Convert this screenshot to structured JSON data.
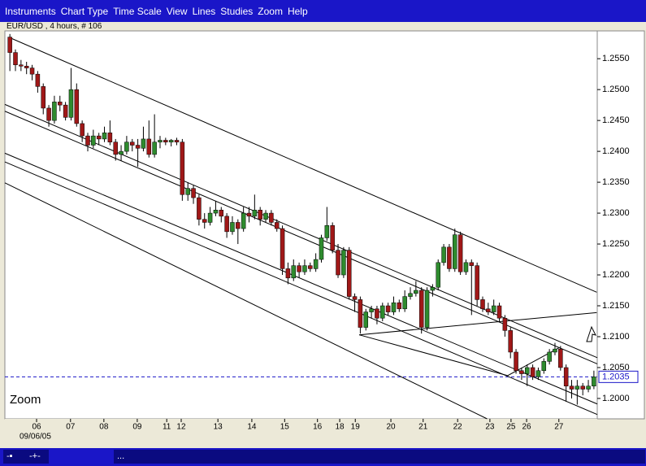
{
  "menu": [
    "Instruments",
    "Chart Type",
    "Time Scale",
    "View",
    "Lines",
    "Studies",
    "Zoom",
    "Help"
  ],
  "zoom_label": "Zoom",
  "status": "...",
  "chart_data": {
    "type": "candlestick",
    "title": "EUR/USD , 4 hours, # 106",
    "xlabel": "09/06/05",
    "up_color": "#2e8b2e",
    "down_color": "#a01818",
    "xlim": [
      -0.9,
      105.6
    ],
    "ylim": [
      1.1967,
      1.2595
    ],
    "xticks": [
      {
        "value": 4.8,
        "label": "06"
      },
      {
        "value": 10.9,
        "label": "07"
      },
      {
        "value": 16.9,
        "label": "08"
      },
      {
        "value": 22.9,
        "label": "09"
      },
      {
        "value": 28.2,
        "label": "11"
      },
      {
        "value": 30.8,
        "label": "12"
      },
      {
        "value": 37.4,
        "label": "13"
      },
      {
        "value": 43.5,
        "label": "14"
      },
      {
        "value": 49.4,
        "label": "15"
      },
      {
        "value": 55.3,
        "label": "16"
      },
      {
        "value": 59.3,
        "label": "18"
      },
      {
        "value": 62.1,
        "label": "19"
      },
      {
        "value": 68.5,
        "label": "20"
      },
      {
        "value": 74.3,
        "label": "21"
      },
      {
        "value": 80.5,
        "label": "22"
      },
      {
        "value": 86.3,
        "label": "23"
      },
      {
        "value": 90.1,
        "label": "25"
      },
      {
        "value": 92.9,
        "label": "26"
      },
      {
        "value": 98.7,
        "label": "27"
      }
    ],
    "yticks": [
      {
        "value": 1.2,
        "label": "1.2000"
      },
      {
        "value": 1.205,
        "label": "1.2050"
      },
      {
        "value": 1.21,
        "label": "1.2100"
      },
      {
        "value": 1.215,
        "label": "1.2150"
      },
      {
        "value": 1.22,
        "label": "1.2200"
      },
      {
        "value": 1.225,
        "label": "1.2250"
      },
      {
        "value": 1.23,
        "label": "1.2300"
      },
      {
        "value": 1.235,
        "label": "1.2350"
      },
      {
        "value": 1.24,
        "label": "1.2400"
      },
      {
        "value": 1.245,
        "label": "1.2450"
      },
      {
        "value": 1.25,
        "label": "1.2500"
      },
      {
        "value": 1.255,
        "label": "1.2550"
      }
    ],
    "current_price": {
      "value": 1.2035,
      "label": "1.2035",
      "color": "#1a16c8"
    },
    "trendlines": [
      {
        "x": [
          0,
          105.5
        ],
        "y": [
          1.2584,
          1.2172
        ]
      },
      {
        "x": [
          -0.9,
          105.6
        ],
        "y": [
          1.2476,
          1.2066
        ]
      },
      {
        "x": [
          -0.9,
          105.6
        ],
        "y": [
          1.2465,
          1.2056
        ]
      },
      {
        "x": [
          -0.9,
          105.6
        ],
        "y": [
          1.2397,
          1.1991
        ]
      },
      {
        "x": [
          -0.9,
          105.6
        ],
        "y": [
          1.2383,
          1.1974
        ]
      },
      {
        "x": [
          -0.9,
          85.8
        ],
        "y": [
          1.2349,
          1.1967
        ]
      },
      {
        "x": [
          62.8,
          105.5
        ],
        "y": [
          1.2103,
          1.2139
        ]
      },
      {
        "x": [
          62.8,
          89.5
        ],
        "y": [
          1.2103,
          1.2037
        ]
      },
      {
        "x": [
          89.5,
          98.7
        ],
        "y": [
          1.2037,
          1.2082
        ]
      }
    ],
    "candles": [
      [
        1.2585,
        1.259,
        1.253,
        1.256
      ],
      [
        1.256,
        1.2565,
        1.253,
        1.254
      ],
      [
        1.254,
        1.2548,
        1.253,
        1.2538
      ],
      [
        1.2538,
        1.2545,
        1.2525,
        1.2535
      ],
      [
        1.2535,
        1.254,
        1.2515,
        1.2525
      ],
      [
        1.2525,
        1.253,
        1.2495,
        1.2505
      ],
      [
        1.2505,
        1.251,
        1.246,
        1.247
      ],
      [
        1.247,
        1.2475,
        1.244,
        1.245
      ],
      [
        1.245,
        1.249,
        1.2445,
        1.248
      ],
      [
        1.248,
        1.249,
        1.2465,
        1.2475
      ],
      [
        1.2475,
        1.248,
        1.245,
        1.2455
      ],
      [
        1.2455,
        1.2535,
        1.245,
        1.25
      ],
      [
        1.25,
        1.251,
        1.244,
        1.2445
      ],
      [
        1.2445,
        1.245,
        1.2415,
        1.2425
      ],
      [
        1.2425,
        1.243,
        1.24,
        1.241
      ],
      [
        1.241,
        1.2435,
        1.2405,
        1.2425
      ],
      [
        1.2425,
        1.243,
        1.241,
        1.242
      ],
      [
        1.242,
        1.244,
        1.2415,
        1.243
      ],
      [
        1.243,
        1.245,
        1.241,
        1.2415
      ],
      [
        1.2415,
        1.242,
        1.2385,
        1.2395
      ],
      [
        1.2395,
        1.241,
        1.2385,
        1.24
      ],
      [
        1.24,
        1.2425,
        1.2395,
        1.2415
      ],
      [
        1.2415,
        1.242,
        1.24,
        1.241
      ],
      [
        1.241,
        1.242,
        1.2375,
        1.2405
      ],
      [
        1.2405,
        1.244,
        1.24,
        1.242
      ],
      [
        1.242,
        1.245,
        1.239,
        1.2395
      ],
      [
        1.2395,
        1.246,
        1.239,
        1.2415
      ],
      [
        1.2415,
        1.2425,
        1.2405,
        1.2418
      ],
      [
        1.2418,
        1.2422,
        1.241,
        1.2415
      ],
      [
        1.2415,
        1.242,
        1.2408,
        1.2418
      ],
      [
        1.2418,
        1.2422,
        1.241,
        1.2415
      ],
      [
        1.2415,
        1.242,
        1.232,
        1.233
      ],
      [
        1.233,
        1.235,
        1.232,
        1.234
      ],
      [
        1.234,
        1.2345,
        1.2315,
        1.2325
      ],
      [
        1.2325,
        1.233,
        1.228,
        1.229
      ],
      [
        1.229,
        1.23,
        1.2275,
        1.2285
      ],
      [
        1.2285,
        1.231,
        1.228,
        1.23
      ],
      [
        1.23,
        1.232,
        1.2295,
        1.2305
      ],
      [
        1.2305,
        1.231,
        1.2285,
        1.2295
      ],
      [
        1.2295,
        1.23,
        1.226,
        1.227
      ],
      [
        1.227,
        1.2295,
        1.2265,
        1.2285
      ],
      [
        1.2285,
        1.229,
        1.225,
        1.2275
      ],
      [
        1.2275,
        1.231,
        1.227,
        1.23
      ],
      [
        1.23,
        1.231,
        1.2285,
        1.2295
      ],
      [
        1.2295,
        1.233,
        1.229,
        1.2305
      ],
      [
        1.2305,
        1.231,
        1.228,
        1.229
      ],
      [
        1.229,
        1.2305,
        1.2285,
        1.23
      ],
      [
        1.23,
        1.2305,
        1.228,
        1.2285
      ],
      [
        1.2285,
        1.229,
        1.227,
        1.2275
      ],
      [
        1.2275,
        1.228,
        1.22,
        1.221
      ],
      [
        1.221,
        1.222,
        1.2185,
        1.2195
      ],
      [
        1.2195,
        1.2225,
        1.219,
        1.2215
      ],
      [
        1.2215,
        1.222,
        1.2195,
        1.2205
      ],
      [
        1.2205,
        1.2225,
        1.22,
        1.2215
      ],
      [
        1.2215,
        1.222,
        1.2205,
        1.221
      ],
      [
        1.221,
        1.2235,
        1.2205,
        1.2225
      ],
      [
        1.2225,
        1.2265,
        1.222,
        1.226
      ],
      [
        1.226,
        1.231,
        1.2255,
        1.228
      ],
      [
        1.228,
        1.2285,
        1.2235,
        1.224
      ],
      [
        1.224,
        1.225,
        1.2195,
        1.22
      ],
      [
        1.22,
        1.2245,
        1.2195,
        1.224
      ],
      [
        1.224,
        1.2245,
        1.216,
        1.2165
      ],
      [
        1.2165,
        1.217,
        1.214,
        1.216
      ],
      [
        1.216,
        1.2165,
        1.2105,
        1.2115
      ],
      [
        1.2115,
        1.2145,
        1.211,
        1.214
      ],
      [
        1.214,
        1.215,
        1.213,
        1.2145
      ],
      [
        1.2145,
        1.215,
        1.212,
        1.213
      ],
      [
        1.213,
        1.2155,
        1.2125,
        1.215
      ],
      [
        1.215,
        1.2155,
        1.2135,
        1.214
      ],
      [
        1.214,
        1.2165,
        1.2135,
        1.2155
      ],
      [
        1.2155,
        1.216,
        1.214,
        1.2145
      ],
      [
        1.2145,
        1.2175,
        1.214,
        1.2165
      ],
      [
        1.2165,
        1.218,
        1.216,
        1.217
      ],
      [
        1.217,
        1.219,
        1.2165,
        1.2175
      ],
      [
        1.2175,
        1.218,
        1.2105,
        1.2115
      ],
      [
        1.2115,
        1.218,
        1.211,
        1.2175
      ],
      [
        1.2175,
        1.2185,
        1.2165,
        1.218
      ],
      [
        1.218,
        1.2225,
        1.2175,
        1.222
      ],
      [
        1.222,
        1.225,
        1.2215,
        1.2245
      ],
      [
        1.2245,
        1.225,
        1.2205,
        1.221
      ],
      [
        1.221,
        1.2275,
        1.2205,
        1.2265
      ],
      [
        1.2265,
        1.227,
        1.22,
        1.2205
      ],
      [
        1.2205,
        1.2225,
        1.22,
        1.222
      ],
      [
        1.222,
        1.2225,
        1.2135,
        1.2215
      ],
      [
        1.2215,
        1.222,
        1.215,
        1.216
      ],
      [
        1.216,
        1.2165,
        1.214,
        1.2145
      ],
      [
        1.2145,
        1.2155,
        1.2135,
        1.214
      ],
      [
        1.214,
        1.216,
        1.2135,
        1.215
      ],
      [
        1.215,
        1.2155,
        1.2125,
        1.213
      ],
      [
        1.213,
        1.2135,
        1.21,
        1.211
      ],
      [
        1.211,
        1.2115,
        1.2065,
        1.2075
      ],
      [
        1.2075,
        1.208,
        1.204,
        1.2045
      ],
      [
        1.2045,
        1.205,
        1.203,
        1.204
      ],
      [
        1.204,
        1.2055,
        1.202,
        1.205
      ],
      [
        1.205,
        1.2055,
        1.203,
        1.2035
      ],
      [
        1.2035,
        1.205,
        1.203,
        1.2045
      ],
      [
        1.2045,
        1.2065,
        1.204,
        1.206
      ],
      [
        1.206,
        1.208,
        1.2055,
        1.2075
      ],
      [
        1.2075,
        1.209,
        1.207,
        1.208
      ],
      [
        1.208,
        1.2085,
        1.2045,
        1.205
      ],
      [
        1.205,
        1.2055,
        1.1995,
        1.202
      ],
      [
        1.202,
        1.203,
        1.2,
        1.2015
      ],
      [
        1.2015,
        1.203,
        1.199,
        1.202
      ],
      [
        1.202,
        1.2025,
        1.2005,
        1.2015
      ],
      [
        1.2015,
        1.203,
        1.201,
        1.202
      ],
      [
        1.202,
        1.2045,
        1.2015,
        1.2035
      ]
    ]
  }
}
